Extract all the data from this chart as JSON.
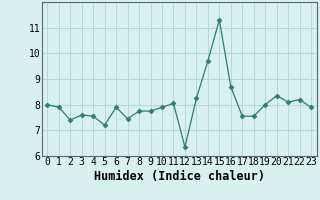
{
  "x": [
    0,
    1,
    2,
    3,
    4,
    5,
    6,
    7,
    8,
    9,
    10,
    11,
    12,
    13,
    14,
    15,
    16,
    17,
    18,
    19,
    20,
    21,
    22,
    23
  ],
  "y": [
    8.0,
    7.9,
    7.4,
    7.6,
    7.55,
    7.2,
    7.9,
    7.45,
    7.75,
    7.75,
    7.9,
    8.05,
    6.35,
    8.25,
    9.7,
    11.3,
    8.7,
    7.55,
    7.55,
    8.0,
    8.35,
    8.1,
    8.2,
    7.9
  ],
  "xlabel": "Humidex (Indice chaleur)",
  "ylim": [
    6,
    12
  ],
  "yticks": [
    6,
    7,
    8,
    9,
    10,
    11
  ],
  "xticks": [
    0,
    1,
    2,
    3,
    4,
    5,
    6,
    7,
    8,
    9,
    10,
    11,
    12,
    13,
    14,
    15,
    16,
    17,
    18,
    19,
    20,
    21,
    22,
    23
  ],
  "line_color": "#2e7d6e",
  "marker": "D",
  "marker_size": 2.5,
  "bg_color": "#d8f0ee",
  "grid_color": "#b8d8d4",
  "tick_label_fontsize": 7,
  "xlabel_fontsize": 8.5,
  "font_family": "monospace"
}
